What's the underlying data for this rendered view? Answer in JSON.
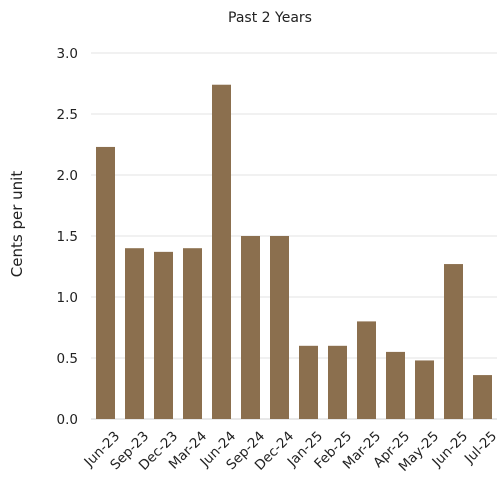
{
  "chart_data": {
    "type": "bar",
    "title": "Past 2 Years",
    "xlabel": "",
    "ylabel": "Cents per unit",
    "categories": [
      "Jun-23",
      "Sep-23",
      "Dec-23",
      "Mar-24",
      "Jun-24",
      "Sep-24",
      "Dec-24",
      "Jan-25",
      "Feb-25",
      "Mar-25",
      "Apr-25",
      "May-25",
      "Jun-25",
      "Jul-25"
    ],
    "values": [
      2.23,
      1.4,
      1.37,
      1.4,
      2.74,
      1.5,
      1.5,
      0.6,
      0.6,
      0.8,
      0.55,
      0.48,
      1.27,
      0.36
    ],
    "ylim": [
      0,
      3.0
    ],
    "yticks": [
      "0.0",
      "0.5",
      "1.0",
      "1.5",
      "2.0",
      "2.5",
      "3.0"
    ],
    "grid": true,
    "legend": "none",
    "bar_color": "#8B6F4E"
  }
}
